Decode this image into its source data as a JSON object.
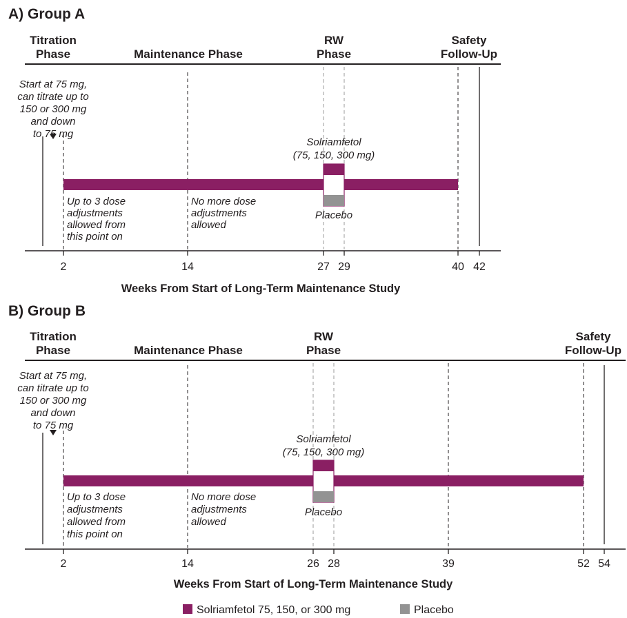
{
  "colors": {
    "drug": "#8a1f63",
    "placebo": "#939393",
    "line": "#231f20",
    "rw_line": "#9a9a9a"
  },
  "panels": [
    {
      "title": "A) Group A",
      "phase_titration": [
        "Titration",
        "Phase"
      ],
      "phase_maintenance": "Maintenance Phase",
      "phase_rw": [
        "RW",
        "Phase"
      ],
      "phase_safety": [
        "Safety",
        "Follow-Up"
      ],
      "start_note": [
        "Start at 75 mg,",
        "can titrate up to",
        "150 or 300 mg",
        "and down",
        "to 75 mg"
      ],
      "note_adjust": [
        "Up to 3 dose",
        "adjustments",
        "allowed from",
        "this point on"
      ],
      "note_no_adjust": [
        "No more dose",
        "adjustments",
        "allowed"
      ],
      "drug_label": [
        "Solriamfetol",
        "(75, 150, 300 mg)"
      ],
      "placebo_label": "Placebo",
      "ticks": [
        "2",
        "14",
        "27",
        "29",
        "40",
        "42"
      ],
      "axis_label": "Weeks From Start of Long-Term Maintenance Study"
    },
    {
      "title": "B) Group B",
      "phase_titration": [
        "Titration",
        "Phase"
      ],
      "phase_maintenance": "Maintenance Phase",
      "phase_rw": [
        "RW",
        "Phase"
      ],
      "phase_safety": [
        "Safety",
        "Follow-Up"
      ],
      "start_note": [
        "Start at 75 mg,",
        "can titrate up to",
        "150 or 300 mg",
        "and down",
        "to 75 mg"
      ],
      "note_adjust": [
        "Up to 3 dose",
        "adjustments",
        "allowed from",
        "this point on"
      ],
      "note_no_adjust": [
        "No more dose",
        "adjustments",
        "allowed"
      ],
      "drug_label": [
        "Solriamfetol",
        "(75, 150, 300 mg)"
      ],
      "placebo_label": "Placebo",
      "ticks": [
        "2",
        "14",
        "26",
        "28",
        "39",
        "52",
        "54"
      ],
      "axis_label": "Weeks From Start of Long-Term Maintenance Study"
    }
  ],
  "legend": {
    "drug": "Solriamfetol 75, 150, or 300 mg",
    "placebo": "Placebo"
  }
}
